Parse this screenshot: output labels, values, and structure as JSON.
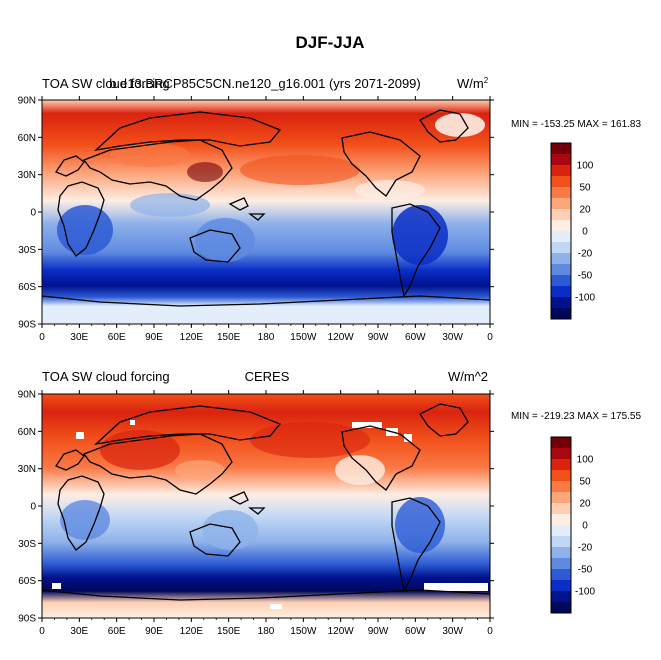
{
  "figure": {
    "title": "DJF-JJA",
    "colorbar_levels": [
      "100",
      "50",
      "20",
      "0",
      "-20",
      "-50",
      "-100"
    ],
    "colorbar_colors": [
      "#730009",
      "#a8070f",
      "#d9230f",
      "#f2501a",
      "#fa7a46",
      "#fca67c",
      "#fdd0b3",
      "#fdeee4",
      "#e4eefa",
      "#c1d8f5",
      "#8fb2ea",
      "#5f8ae0",
      "#2d5bd4",
      "#0a2ec6",
      "#00128e",
      "#00085a"
    ],
    "land_color": "#000000"
  },
  "panels": [
    {
      "left_title": "TOA SW cloud forcing",
      "center_title": "b.e13.BRCP85C5CN.ne120_g16.001 (yrs 2071-2099)",
      "units": "W/m",
      "units_sup": "2",
      "stats": "MIN = -153.25  MAX = 161.83",
      "lat_labels": [
        "90N",
        "60N",
        "30N",
        "0",
        "30S",
        "60S",
        "90S"
      ],
      "lon_labels": [
        "0",
        "30E",
        "60E",
        "90E",
        "120E",
        "150E",
        "180",
        "150W",
        "120W",
        "90W",
        "60W",
        "30W",
        "0"
      ]
    },
    {
      "left_title": "TOA SW cloud forcing",
      "center_title": "CERES",
      "units": "W/m^2",
      "units_sup": "",
      "stats": "MIN = -219.23  MAX = 175.55",
      "lat_labels": [
        "90N",
        "60N",
        "30N",
        "0",
        "30S",
        "60S",
        "90S"
      ],
      "lon_labels": [
        "0",
        "30E",
        "60E",
        "90E",
        "120E",
        "150E",
        "180",
        "150W",
        "120W",
        "90W",
        "60W",
        "30W",
        "0"
      ]
    }
  ]
}
